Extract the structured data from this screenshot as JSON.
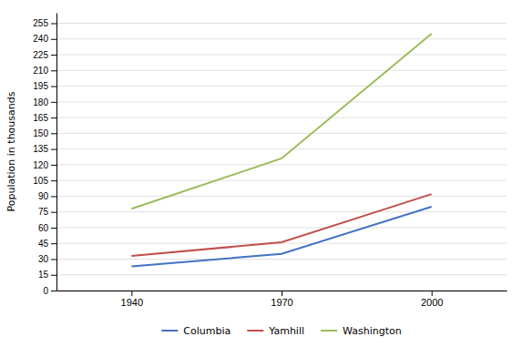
{
  "chart_data": {
    "type": "line",
    "y_label": "Population in thousands",
    "x": [
      1940,
      1970,
      2000
    ],
    "xlim": [
      1925,
      2015
    ],
    "xticks": [
      1940,
      1970,
      2000
    ],
    "ylim": [
      0,
      265
    ],
    "yticks": [
      0,
      15,
      30,
      45,
      60,
      75,
      90,
      105,
      120,
      135,
      150,
      165,
      180,
      195,
      210,
      225,
      240,
      255
    ],
    "grid": true,
    "legend": "bottom",
    "series": [
      {
        "name": "Columbia",
        "color": "#4472C4",
        "values": [
          23,
          35,
          80
        ]
      },
      {
        "name": "Yamhill",
        "color": "#C0504D",
        "values": [
          33,
          46,
          92
        ]
      },
      {
        "name": "Washington",
        "color": "#9BBB59",
        "values": [
          78,
          126,
          245
        ]
      }
    ]
  }
}
